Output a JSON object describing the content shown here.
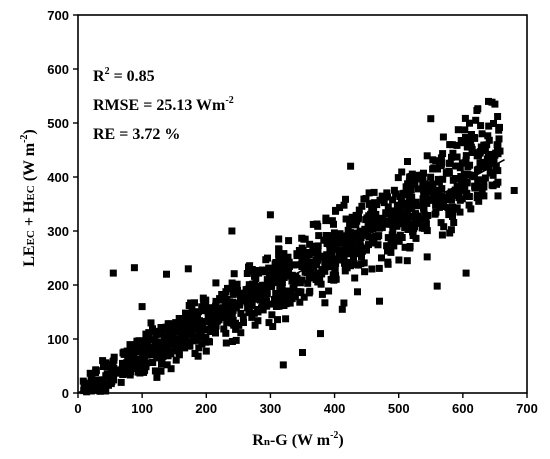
{
  "chart_data": {
    "type": "scatter",
    "xlabel": {
      "main": "R",
      "sub": "n",
      "rest": "-G (W m",
      "sup": "-2",
      "close": ")"
    },
    "ylabel": {
      "p1": "LE",
      "s1": "EC",
      "p2": " + H",
      "s2": "EC",
      "p3": " (W m",
      "sup": "-2",
      "close": ")"
    },
    "xlim": [
      0,
      700
    ],
    "ylim": [
      0,
      700
    ],
    "xticks": [
      0,
      100,
      200,
      300,
      400,
      500,
      600,
      700
    ],
    "yticks": [
      0,
      100,
      200,
      300,
      400,
      500,
      600,
      700
    ],
    "annotations": {
      "r2_pre": "R",
      "r2_sup": "2",
      "r2_post": " = 0.85",
      "rmse_pre": "RMSE = 25.13 Wm",
      "rmse_sup": "-2",
      "re": "RE = 3.72 %"
    },
    "fit_line": {
      "x": [
        0,
        665
      ],
      "y": [
        0,
        432
      ]
    },
    "outliers": [
      [
        55,
        222
      ],
      [
        88,
        232
      ],
      [
        138,
        220
      ],
      [
        240,
        300
      ],
      [
        320,
        52
      ],
      [
        350,
        75
      ],
      [
        425,
        420
      ],
      [
        550,
        508
      ],
      [
        620,
        505
      ],
      [
        680,
        375
      ],
      [
        560,
        198
      ],
      [
        605,
        222
      ],
      [
        445,
        268
      ],
      [
        528,
        322
      ],
      [
        470,
        170
      ],
      [
        412,
        155
      ],
      [
        378,
        110
      ],
      [
        300,
        330
      ],
      [
        172,
        230
      ],
      [
        100,
        160
      ],
      [
        640,
        540
      ],
      [
        650,
        535
      ],
      [
        630,
        480
      ]
    ],
    "marker_color": "#000000",
    "grid": false
  }
}
